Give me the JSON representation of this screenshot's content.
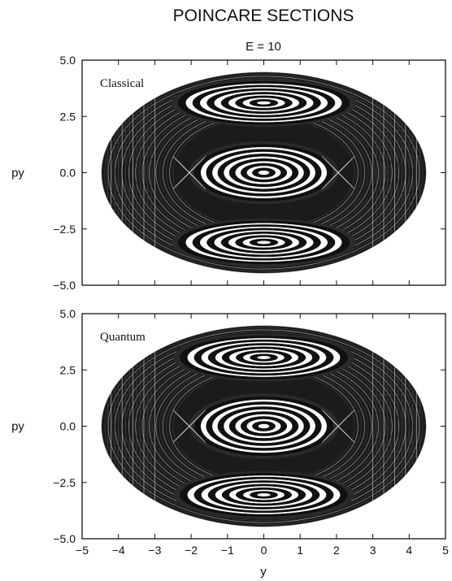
{
  "chart_data": [
    {
      "type": "scatter",
      "title": "POINCARE SECTIONS",
      "subtitle": "E = 10",
      "annotation": "Classical",
      "xlabel": "",
      "ylabel": "py",
      "xlim": [
        -5,
        5
      ],
      "ylim": [
        -5,
        5
      ],
      "x_ticks": [
        -5,
        -4,
        -3,
        -2,
        -1,
        0,
        1,
        2,
        3,
        4,
        5
      ],
      "y_ticks": [
        5.0,
        2.5,
        0.0,
        -2.5,
        -5.0
      ],
      "x_tick_labels": [
        "−5",
        "−4",
        "−3",
        "−2",
        "−1",
        "0",
        "1",
        "2",
        "3",
        "4",
        "5"
      ],
      "y_tick_labels": [
        "5.0",
        "2.5",
        "0.0",
        "−2.5",
        "−5.0"
      ],
      "boundary": {
        "y_half_width": 4.47,
        "py_half_height": 4.47
      },
      "islands": [
        {
          "center": [
            0,
            0
          ],
          "ry": 1.9,
          "rpy": 1.25
        },
        {
          "center": [
            0,
            3.1
          ],
          "ry": 2.35,
          "rpy": 0.95
        },
        {
          "center": [
            0,
            -3.1
          ],
          "ry": 2.35,
          "rpy": 0.95
        }
      ],
      "grid": false,
      "legend": "none"
    },
    {
      "type": "scatter",
      "title": "",
      "annotation": "Quantum",
      "xlabel": "y",
      "ylabel": "py",
      "xlim": [
        -5,
        5
      ],
      "ylim": [
        -5,
        5
      ],
      "x_ticks": [
        -5,
        -4,
        -3,
        -2,
        -1,
        0,
        1,
        2,
        3,
        4,
        5
      ],
      "y_ticks": [
        5.0,
        2.5,
        0.0,
        -2.5,
        -5.0
      ],
      "x_tick_labels": [
        "−5",
        "−4",
        "−3",
        "−2",
        "−1",
        "0",
        "1",
        "2",
        "3",
        "4",
        "5"
      ],
      "y_tick_labels": [
        "5.0",
        "2.5",
        "0.0",
        "−2.5",
        "−5.0"
      ],
      "boundary": {
        "y_half_width": 4.47,
        "py_half_height": 4.47
      },
      "islands": [
        {
          "center": [
            0,
            0
          ],
          "ry": 1.9,
          "rpy": 1.3
        },
        {
          "center": [
            0,
            3.05
          ],
          "ry": 2.3,
          "rpy": 0.95
        },
        {
          "center": [
            0,
            -3.05
          ],
          "ry": 2.3,
          "rpy": 0.95
        }
      ],
      "grid": false,
      "legend": "none"
    }
  ]
}
